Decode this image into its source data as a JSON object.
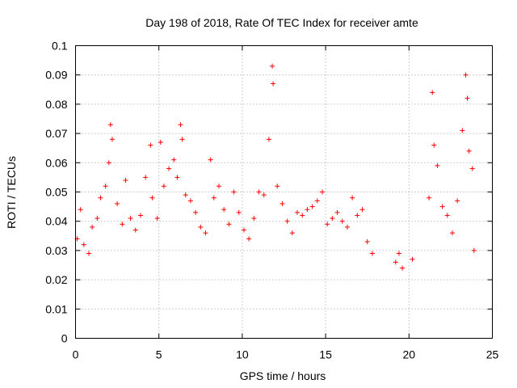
{
  "chart_data": {
    "type": "scatter",
    "title": "Day 198 of 2018, Rate Of TEC Index for receiver amte",
    "xlabel": "GPS time / hours",
    "ylabel": "ROTI / TECUs",
    "xlim": [
      0,
      25
    ],
    "ylim": [
      0,
      0.1
    ],
    "xticks": [
      "0",
      "5",
      "10",
      "15",
      "20",
      "25"
    ],
    "yticks": [
      "0",
      "0.01",
      "0.02",
      "0.03",
      "0.04",
      "0.05",
      "0.06",
      "0.07",
      "0.08",
      "0.09",
      "0.1"
    ],
    "grid": true,
    "marker": "+",
    "color": "#ff0000",
    "series": [
      {
        "x": [
          0.1,
          0.3,
          0.5,
          0.8,
          1.0,
          1.3,
          1.5,
          1.8,
          2.0,
          2.1,
          2.2,
          2.5,
          2.8,
          3.0,
          3.3,
          3.6,
          3.9,
          4.2,
          4.5,
          4.6,
          4.9,
          5.1,
          5.3,
          5.6,
          5.9,
          6.1,
          6.3,
          6.4,
          6.6,
          6.9,
          7.2,
          7.5,
          7.8,
          8.1,
          8.3,
          8.6,
          8.9,
          9.2,
          9.5,
          9.8,
          10.1,
          10.4,
          10.7,
          11.0,
          11.3,
          11.6,
          11.8,
          11.85,
          12.1,
          12.4,
          12.7,
          13.0,
          13.3,
          13.6,
          13.9,
          14.2,
          14.5,
          14.8,
          15.1,
          15.4,
          15.7,
          16.0,
          16.3,
          16.6,
          16.9,
          17.2,
          17.5,
          17.8,
          19.2,
          19.4,
          19.6,
          20.2,
          21.2,
          21.4,
          21.5,
          21.7,
          22.0,
          22.3,
          22.6,
          22.9,
          23.2,
          23.4,
          23.5,
          23.6,
          23.8,
          23.9
        ],
        "y": [
          0.034,
          0.044,
          0.032,
          0.029,
          0.038,
          0.041,
          0.048,
          0.052,
          0.06,
          0.073,
          0.068,
          0.046,
          0.039,
          0.054,
          0.041,
          0.037,
          0.042,
          0.055,
          0.066,
          0.048,
          0.041,
          0.067,
          0.052,
          0.058,
          0.061,
          0.055,
          0.073,
          0.068,
          0.049,
          0.047,
          0.043,
          0.038,
          0.036,
          0.061,
          0.048,
          0.052,
          0.044,
          0.039,
          0.05,
          0.043,
          0.037,
          0.034,
          0.041,
          0.05,
          0.049,
          0.068,
          0.093,
          0.087,
          0.052,
          0.046,
          0.04,
          0.036,
          0.043,
          0.042,
          0.044,
          0.045,
          0.047,
          0.05,
          0.039,
          0.041,
          0.043,
          0.04,
          0.038,
          0.048,
          0.042,
          0.044,
          0.033,
          0.029,
          0.026,
          0.029,
          0.024,
          0.027,
          0.048,
          0.084,
          0.066,
          0.059,
          0.045,
          0.042,
          0.036,
          0.047,
          0.071,
          0.09,
          0.082,
          0.064,
          0.058,
          0.03
        ]
      }
    ]
  }
}
